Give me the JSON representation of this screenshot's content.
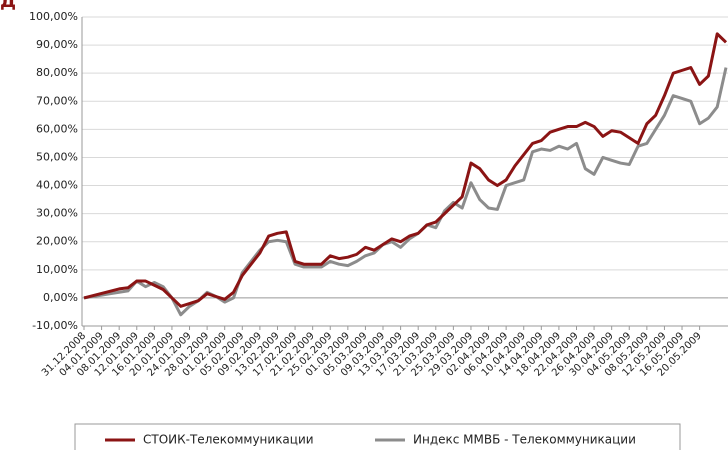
{
  "chart_data": {
    "type": "line",
    "title": "Д",
    "categories": [
      "31.12.2008",
      null,
      "04.01.2009",
      null,
      "08.01.2009",
      null,
      "12.01.2009",
      null,
      "16.01.2009",
      null,
      "20.01.2009",
      null,
      "24.01.2009",
      null,
      "28.01.2009",
      null,
      "01.02.2009",
      null,
      "05.02.2009",
      null,
      "09.02.2009",
      null,
      "13.02.2009",
      null,
      "17.02.2009",
      null,
      "21.02.2009",
      null,
      "25.02.2009",
      null,
      "01.03.2009",
      null,
      "05.03.2009",
      null,
      "09.03.2009",
      null,
      "13.03.2009",
      null,
      "17.03.2009",
      null,
      "21.03.2009",
      null,
      "25.03.2009",
      null,
      "29.03.2009",
      null,
      "02.04.2009",
      null,
      "06.04.2009",
      null,
      "10.04.2009",
      null,
      "14.04.2009",
      null,
      "18.04.2009",
      null,
      "22.04.2009",
      null,
      "26.04.2009",
      null,
      "30.04.2009",
      null,
      "04.05.2009",
      null,
      "08.05.2009",
      null,
      "12.05.2009",
      null,
      "16.05.2009",
      null,
      "20.05.2009",
      null,
      null,
      null
    ],
    "series": [
      {
        "name": "СТОИК-Телекоммуникации",
        "color": "#8b1414",
        "values": [
          0,
          0.8,
          1.6,
          2.4,
          3.2,
          3.6,
          6,
          6,
          4.5,
          3,
          0,
          -3,
          -2,
          -1,
          1.5,
          0.5,
          -0.5,
          2,
          8,
          12,
          16,
          22,
          23,
          23.5,
          13,
          12,
          12,
          12,
          15,
          14,
          14.5,
          15.5,
          18,
          17,
          19,
          21,
          20,
          22,
          23,
          26,
          27,
          30,
          33,
          36,
          48,
          46,
          42,
          40,
          42,
          47,
          51,
          55,
          56,
          59,
          60,
          61,
          61,
          62.5,
          61,
          57.5,
          59.5,
          59,
          57,
          55,
          62,
          65,
          72,
          80,
          81,
          82,
          76,
          79,
          94,
          91
        ]
      },
      {
        "name": "Индекс ММВБ - Телекоммуникации",
        "color": "#8c8c8c",
        "values": [
          0,
          0.5,
          1,
          1.5,
          2,
          2.5,
          6,
          4,
          5.5,
          4,
          0,
          -6,
          -3,
          -1,
          2,
          0.5,
          -1.5,
          0,
          9,
          13,
          17,
          20,
          20.5,
          20,
          12,
          11,
          11,
          11,
          13,
          12,
          11.5,
          13,
          15,
          16,
          19,
          20,
          18,
          21,
          23,
          26,
          25,
          31,
          34,
          32,
          41,
          35,
          32,
          31.5,
          40,
          41,
          42,
          52,
          53,
          52.5,
          54,
          53,
          55,
          46,
          44,
          50,
          49,
          48,
          47.5,
          54,
          55,
          60,
          65,
          72,
          71,
          70,
          62,
          64,
          68,
          82
        ]
      }
    ],
    "ylim": [
      -10,
      100
    ],
    "yticks": [
      {
        "value": -10,
        "label": "-10,00%"
      },
      {
        "value": 0,
        "label": "0,00%"
      },
      {
        "value": 10,
        "label": "10,00%"
      },
      {
        "value": 20,
        "label": "20,00%"
      },
      {
        "value": 30,
        "label": "30,00%"
      },
      {
        "value": 40,
        "label": "40,00%"
      },
      {
        "value": 50,
        "label": "50,00%"
      },
      {
        "value": 60,
        "label": "60,00%"
      },
      {
        "value": 70,
        "label": "70,00%"
      },
      {
        "value": 80,
        "label": "80,00%"
      },
      {
        "value": 90,
        "label": "90,00%"
      },
      {
        "value": 100,
        "label": "100,00%"
      }
    ],
    "grid": true,
    "legend": "bottom"
  }
}
